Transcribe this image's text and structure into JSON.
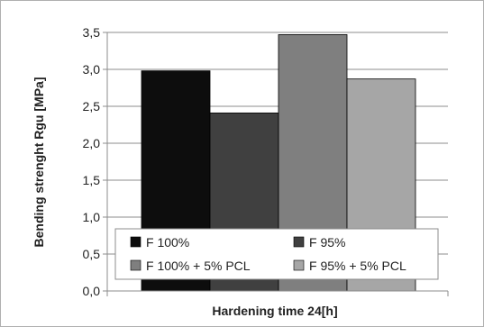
{
  "chart_data": {
    "type": "bar",
    "categories": [
      "Hardening time 24[h]"
    ],
    "series": [
      {
        "name": "F 100%",
        "values": [
          2.98
        ],
        "color": "#0d0d0d"
      },
      {
        "name": "F 95%",
        "values": [
          2.41
        ],
        "color": "#404040"
      },
      {
        "name": "F 100% + 5% PCL",
        "values": [
          3.47
        ],
        "color": "#7f7f7f"
      },
      {
        "name": "F 95% + 5% PCL",
        "values": [
          2.87
        ],
        "color": "#a6a6a6"
      }
    ],
    "xlabel": "Hardening time 24[h]",
    "ylabel": "Bending strenght Rgu [MPa]",
    "ylim": [
      0,
      3.5
    ],
    "yticks": [
      "0,0",
      "0,5",
      "1,0",
      "1,5",
      "2,0",
      "2,5",
      "3,0",
      "3,5"
    ],
    "grid": true,
    "legend": "bottom-center, inside plot"
  }
}
